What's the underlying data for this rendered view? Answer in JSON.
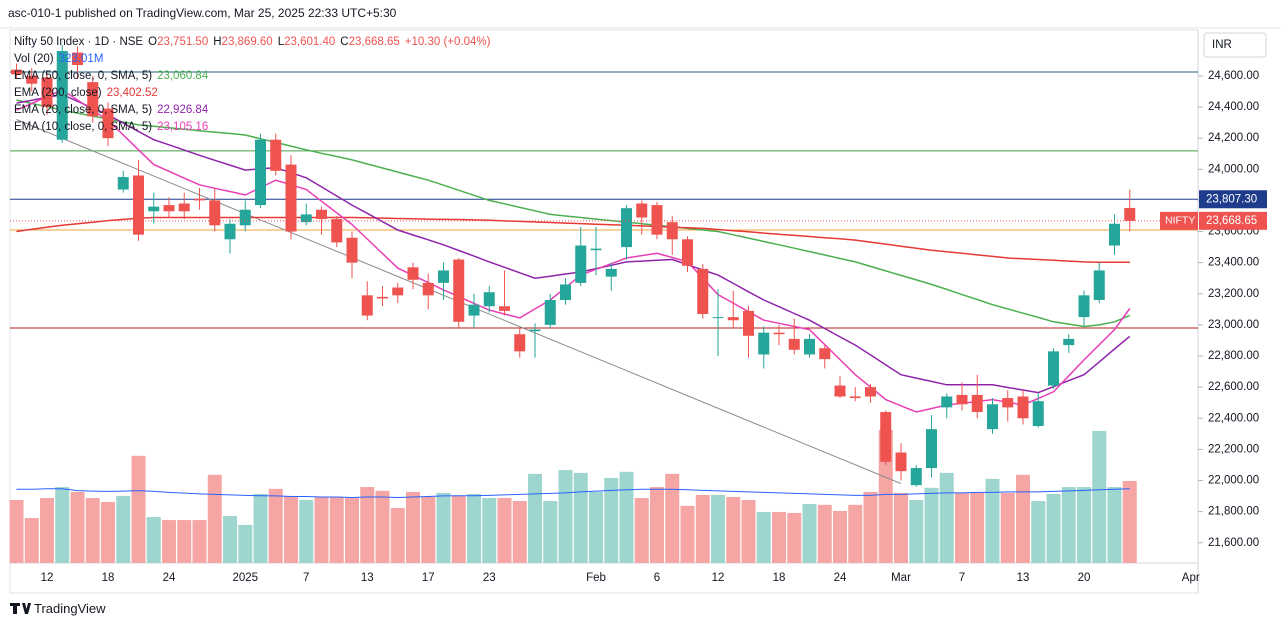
{
  "header": {
    "publisher": "asc-010-1 published on TradingView.com, Mar 25, 2025 22:33 UTC+5:30",
    "brand": "TradingView"
  },
  "chart_data": {
    "type": "candlestick",
    "title": "Nifty 50 Index · 1D · NSE",
    "ohlc_labels": [
      {
        "key": "O",
        "text": "23,751.50"
      },
      {
        "key": "H",
        "text": "23,869.60"
      },
      {
        "key": "L",
        "text": "23,601.40"
      },
      {
        "key": "C",
        "text": "23,668.65"
      }
    ],
    "change": "+10.30 (+0.04%)",
    "currency": "INR",
    "symbol_label": "NIFTY",
    "last_label": "23,668.65",
    "up_color": "#26a69a",
    "down_color": "#ef5350",
    "up_volume_color": "#9fd5cf",
    "down_volume_color": "#f5a6a4",
    "categories": [
      null,
      null,
      "12",
      null,
      null,
      null,
      "18",
      null,
      null,
      null,
      "24",
      null,
      null,
      null,
      null,
      "2025",
      null,
      null,
      null,
      "7",
      null,
      null,
      null,
      "13",
      null,
      null,
      null,
      "17",
      null,
      null,
      null,
      "23",
      null,
      null,
      null,
      null,
      null,
      null,
      "Feb",
      null,
      null,
      null,
      "6",
      null,
      null,
      null,
      "12",
      null,
      null,
      null,
      "18",
      null,
      null,
      null,
      "24",
      null,
      null,
      null,
      "Mar",
      null,
      null,
      null,
      "7",
      null,
      null,
      null,
      "13",
      null,
      null,
      null,
      "20",
      null,
      null,
      null,
      null,
      null,
      null,
      "Apr"
    ],
    "open": [
      24640,
      24600,
      24590,
      24190,
      24750,
      24560,
      24390,
      23870,
      23960,
      23730,
      23770,
      23780,
      23810,
      23800,
      23550,
      23640,
      23770,
      24190,
      24030,
      23660,
      23740,
      23680,
      23560,
      23190,
      23180,
      23240,
      23370,
      23270,
      23270,
      23420,
      23060,
      23120,
      23120,
      22940,
      22960,
      23000,
      23160,
      23270,
      23480,
      23310,
      23500,
      23780,
      23770,
      23660,
      23550,
      23360,
      23050,
      23050,
      23090,
      22810,
      22950,
      22910,
      22810,
      22850,
      22610,
      22540,
      22600,
      22440,
      22180,
      21970,
      22080,
      22470,
      22550,
      22550,
      22330,
      22530,
      22540,
      22350,
      22610,
      22870,
      23050,
      23160,
      23510,
      23751.5,
      null,
      null,
      null,
      null
    ],
    "high": [
      24680,
      24650,
      24620,
      24800,
      24790,
      24600,
      24430,
      23990,
      24060,
      23850,
      23820,
      23850,
      23880,
      23880,
      23680,
      23800,
      24230,
      24230,
      24090,
      23780,
      23760,
      23700,
      23600,
      23280,
      23250,
      23270,
      23400,
      23330,
      23400,
      23430,
      23200,
      23250,
      23350,
      22980,
      23010,
      23200,
      23300,
      23630,
      23630,
      23400,
      23770,
      23800,
      23790,
      23700,
      23570,
      23390,
      23230,
      23220,
      23120,
      22990,
      23000,
      23040,
      22940,
      22870,
      22670,
      22600,
      22620,
      22450,
      22240,
      22100,
      22420,
      22560,
      22630,
      22680,
      22530,
      22580,
      22580,
      22560,
      22850,
      22940,
      23220,
      23400,
      23710,
      23869.6,
      null,
      null,
      null,
      null
    ],
    "low": [
      24580,
      24500,
      24350,
      24170,
      24580,
      24300,
      24150,
      23850,
      23540,
      23650,
      23690,
      23680,
      23740,
      23600,
      23460,
      23600,
      23750,
      23960,
      23550,
      23640,
      23580,
      23500,
      23300,
      23030,
      23120,
      23140,
      23230,
      23100,
      23160,
      22980,
      22980,
      23080,
      23060,
      22790,
      22790,
      22980,
      23130,
      23250,
      23320,
      23220,
      23420,
      23580,
      23550,
      23450,
      23340,
      23040,
      22800,
      22980,
      22790,
      22720,
      22870,
      22810,
      22790,
      22720,
      22530,
      22510,
      22500,
      22100,
      22000,
      21960,
      22020,
      22400,
      22450,
      22400,
      22300,
      22380,
      22360,
      22340,
      22590,
      22820,
      22990,
      23140,
      23450,
      23601.4,
      null,
      null,
      null,
      null
    ],
    "close": [
      24610,
      24550,
      24400,
      24760,
      24670,
      24340,
      24200,
      23950,
      23580,
      23760,
      23730,
      23730,
      23800,
      23640,
      23650,
      23740,
      24190,
      23990,
      23600,
      23710,
      23680,
      23530,
      23400,
      23060,
      23170,
      23190,
      23290,
      23190,
      23350,
      23020,
      23130,
      23210,
      23090,
      22830,
      22970,
      23160,
      23260,
      23510,
      23490,
      23360,
      23750,
      23690,
      23580,
      23550,
      23380,
      23070,
      23050,
      23030,
      22930,
      22950,
      22940,
      22840,
      22910,
      22780,
      22540,
      22530,
      22540,
      22120,
      22060,
      22080,
      22330,
      22540,
      22490,
      22440,
      22490,
      22470,
      22400,
      22510,
      22830,
      22910,
      23190,
      23350,
      23650,
      23668.65,
      null,
      null,
      null,
      null
    ],
    "volume": {
      "name": "Vol (20)",
      "value_label": "323.01M",
      "ma_color": "#2962ff",
      "values": [
        248,
        177,
        256,
        299,
        280,
        256,
        240,
        264,
        422,
        181,
        169,
        169,
        169,
        347,
        185,
        150,
        272,
        292,
        264,
        248,
        260,
        260,
        256,
        299,
        284,
        217,
        280,
        260,
        276,
        264,
        272,
        256,
        256,
        244,
        351,
        244,
        366,
        355,
        280,
        335,
        359,
        256,
        299,
        351,
        225,
        268,
        268,
        260,
        248,
        201,
        201,
        197,
        232,
        229,
        205,
        229,
        280,
        524,
        276,
        248,
        296,
        355,
        276,
        276,
        331,
        276,
        347,
        244,
        272,
        299,
        299,
        520,
        299,
        323.01,
        null,
        null,
        null,
        null
      ],
      "ma": [
        290,
        290,
        292,
        292,
        285,
        283,
        282,
        283,
        285,
        282,
        278,
        275,
        272,
        270,
        268,
        266,
        265,
        264,
        262,
        262,
        260,
        260,
        258,
        260,
        260,
        258,
        260,
        262,
        264,
        265,
        265,
        266,
        268,
        270,
        272,
        274,
        276,
        280,
        283,
        286,
        288,
        290,
        290,
        290,
        288,
        286,
        284,
        282,
        280,
        278,
        276,
        274,
        272,
        270,
        268,
        266,
        266,
        270,
        270,
        272,
        274,
        276,
        276,
        278,
        278,
        280,
        280,
        280,
        282,
        284,
        286,
        288,
        290,
        292,
        null,
        null,
        null,
        null
      ]
    },
    "series": [
      {
        "name": "EMA (50, close, 0, SMA, 5)",
        "value_label": "23,060.84",
        "color": "#4caf50",
        "values": [
          24445,
          24423,
          24402,
          24380,
          24361,
          24342,
          24323,
          24304,
          24285,
          24276,
          24267,
          24257,
          24248,
          24239,
          24230,
          24220,
          24196,
          24173,
          24149,
          24125,
          24103,
          24082,
          24060,
          24034,
          24008,
          23982,
          23956,
          23930,
          23898,
          23865,
          23833,
          23800,
          23778,
          23755,
          23733,
          23710,
          23700,
          23690,
          23680,
          23670,
          23660,
          23650,
          23640,
          23630,
          23620,
          23610,
          23600,
          23579,
          23558,
          23536,
          23515,
          23493,
          23471,
          23449,
          23427,
          23405,
          23376,
          23347,
          23318,
          23289,
          23260,
          23228,
          23195,
          23163,
          23130,
          23103,
          23075,
          23048,
          23020,
          23005,
          22990,
          23000,
          23020,
          23060.84,
          null,
          null,
          null,
          null
        ]
      },
      {
        "name": "EMA (200, close)",
        "value_label": "23,402.52",
        "color": "#e53935",
        "values": [
          23600,
          23615,
          23628,
          23640,
          23650,
          23660,
          23670,
          23678,
          23685,
          23690,
          23690,
          23690,
          23690,
          23690,
          23690,
          23690,
          23690,
          23690,
          23690,
          23690,
          23690,
          23690,
          23690,
          23688,
          23686,
          23684,
          23682,
          23680,
          23678,
          23677,
          23675,
          23672,
          23668,
          23665,
          23661,
          23658,
          23654,
          23651,
          23647,
          23644,
          23640,
          23636,
          23632,
          23628,
          23624,
          23620,
          23613,
          23605,
          23598,
          23590,
          23583,
          23575,
          23568,
          23560,
          23553,
          23545,
          23532,
          23519,
          23506,
          23493,
          23480,
          23470,
          23460,
          23450,
          23440,
          23430,
          23425,
          23420,
          23415,
          23410,
          23405,
          23403,
          23402,
          23402.52,
          null,
          null,
          null,
          null
        ]
      },
      {
        "name": "EMA (20, close, 0, SMA, 5)",
        "value_label": "22,926.84",
        "color": "#8e24aa",
        "values": [
          24425,
          24443,
          24462,
          24480,
          24437,
          24393,
          24350,
          24297,
          24243,
          24190,
          24157,
          24123,
          24090,
          24058,
          24027,
          23995,
          24003,
          24010,
          23978,
          23945,
          23887,
          23828,
          23770,
          23717,
          23663,
          23610,
          23578,
          23547,
          23515,
          23478,
          23442,
          23405,
          23370,
          23335,
          23300,
          23313,
          23327,
          23340,
          23362,
          23383,
          23405,
          23410,
          23415,
          23420,
          23387,
          23353,
          23320,
          23267,
          23213,
          23160,
          23117,
          23073,
          23030,
          22977,
          22923,
          22870,
          22807,
          22743,
          22680,
          22658,
          22637,
          22615,
          22615,
          22615,
          22615,
          22598,
          22582,
          22565,
          22603,
          22642,
          22680,
          22762,
          22845,
          22926.84,
          null,
          null,
          null,
          null
        ]
      },
      {
        "name": "EMA (10, close, 0, SMA, 5)",
        "value_label": "23,105.16",
        "color": "#e83fb5",
        "values": [
          24380,
          24423,
          24467,
          24510,
          24445,
          24380,
          24315,
          24220,
          24125,
          24030,
          23987,
          23943,
          23900,
          23878,
          23857,
          23835,
          23883,
          23930,
          23900,
          23870,
          23795,
          23720,
          23645,
          23552,
          23458,
          23365,
          23318,
          23272,
          23225,
          23182,
          23138,
          23095,
          23070,
          23045,
          23103,
          23160,
          23240,
          23320,
          23357,
          23393,
          23430,
          23445,
          23460,
          23433,
          23405,
          23300,
          23195,
          23140,
          23085,
          23030,
          23010,
          22990,
          22970,
          22873,
          22777,
          22680,
          22600,
          22520,
          22480,
          22440,
          22463,
          22485,
          22497,
          22508,
          22520,
          22503,
          22485,
          22528,
          22570,
          22673,
          22775,
          22873,
          22970,
          23105.16,
          null,
          null,
          null,
          null
        ]
      }
    ],
    "hlines": [
      {
        "value": 24625,
        "color": "#1f5f7a"
      },
      {
        "value": 24118,
        "color": "#43a047"
      },
      {
        "value": 23807.3,
        "color": "#1e3c8c",
        "label": "23,807.30"
      },
      {
        "value": 23610,
        "color": "#f2a33a"
      },
      {
        "value": 22980,
        "color": "#b71c1c"
      }
    ],
    "trendline": {
      "color": "#8a8a8a",
      "x": [
        0,
        58
      ],
      "values": [
        24320,
        21980
      ]
    },
    "ylim": [
      21470,
      24895
    ],
    "yticks": [
      {
        "value": 24600,
        "label": "24,600.00"
      },
      {
        "value": 24400,
        "label": "24,400.00"
      },
      {
        "value": 24200,
        "label": "24,200.00"
      },
      {
        "value": 24000,
        "label": "24,000.00"
      },
      {
        "value": 23800,
        "label": "23,800.00"
      },
      {
        "value": 23600,
        "label": "23,600.00"
      },
      {
        "value": 23400,
        "label": "23,400.00"
      },
      {
        "value": 23200,
        "label": "23,200.00"
      },
      {
        "value": 23000,
        "label": "23,000.00"
      },
      {
        "value": 22800,
        "label": "22,800.00"
      },
      {
        "value": 22600,
        "label": "22,600.00"
      },
      {
        "value": 22400,
        "label": "22,400.00"
      },
      {
        "value": 22200,
        "label": "22,200.00"
      },
      {
        "value": 22000,
        "label": "22,000.00"
      },
      {
        "value": 21800,
        "label": "21,800.00"
      },
      {
        "value": 21600,
        "label": "21,600.00"
      }
    ]
  }
}
